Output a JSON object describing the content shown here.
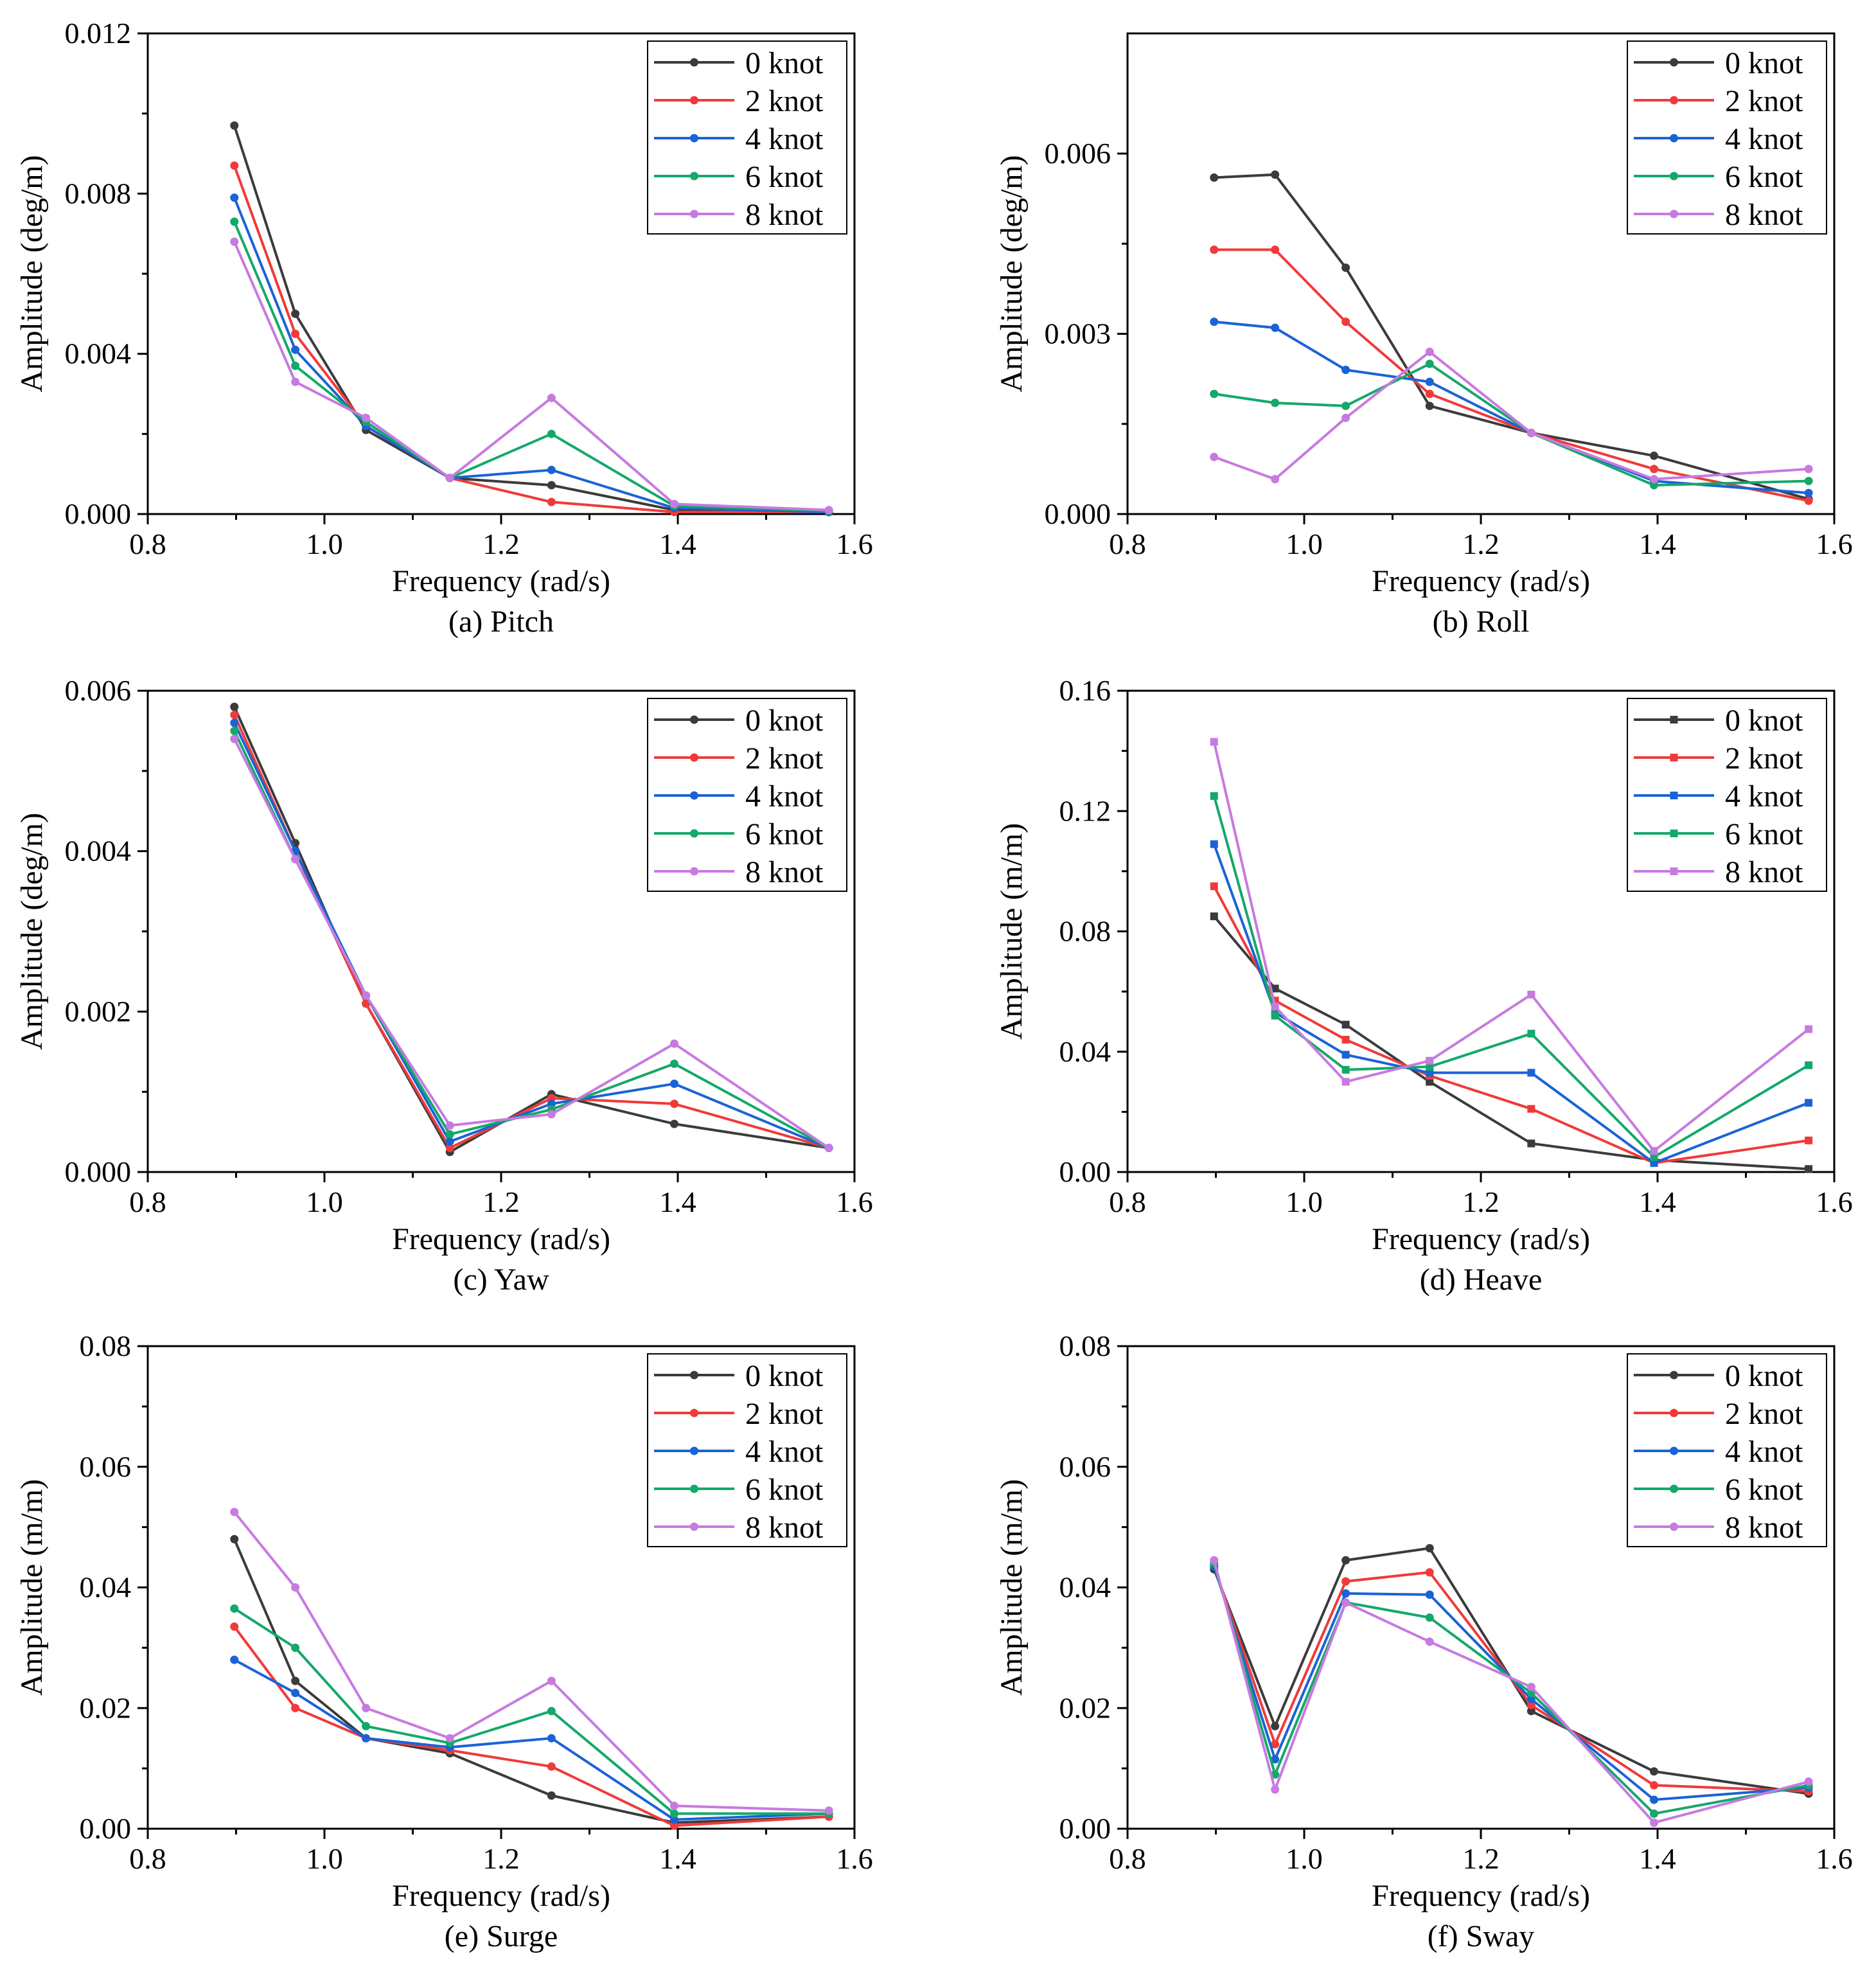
{
  "figure": {
    "colors": {
      "0 knot": "#3b3b3b",
      "2 knot": "#f03a3a",
      "4 knot": "#1a63d6",
      "6 knot": "#14a86a",
      "8 knot": "#c77ae0"
    }
  },
  "chart_data": [
    {
      "id": "pitch",
      "type": "line",
      "caption": "(a) Pitch",
      "xlabel": "Frequency (rad/s)",
      "ylabel": "Amplitude (deg/m)",
      "xlim": [
        0.8,
        1.6
      ],
      "ylim": [
        0,
        0.012
      ],
      "xticks": [
        "0.8",
        "1.0",
        "1.2",
        "1.4",
        "1.6"
      ],
      "yticks": [
        "0.000",
        "0.004",
        "0.008",
        "0.012"
      ],
      "marker": "circle",
      "legend": "top-right",
      "x": [
        0.898,
        0.967,
        1.047,
        1.142,
        1.257,
        1.396,
        1.571
      ],
      "series": [
        {
          "name": "0 knot",
          "values": [
            0.0097,
            0.005,
            0.0021,
            0.0009,
            0.00072,
            0.0001,
            5e-05
          ]
        },
        {
          "name": "2 knot",
          "values": [
            0.0087,
            0.0045,
            0.0022,
            0.0009,
            0.0003,
            5e-05,
            5e-05
          ]
        },
        {
          "name": "4 knot",
          "values": [
            0.0079,
            0.0041,
            0.0022,
            0.0009,
            0.0011,
            0.00015,
            5e-05
          ]
        },
        {
          "name": "6 knot",
          "values": [
            0.0073,
            0.0037,
            0.0023,
            0.0009,
            0.002,
            0.0002,
            8e-05
          ]
        },
        {
          "name": "8 knot",
          "values": [
            0.0068,
            0.0033,
            0.0024,
            0.0009,
            0.0029,
            0.00025,
            0.0001
          ]
        }
      ]
    },
    {
      "id": "roll",
      "type": "line",
      "caption": "(b) Roll",
      "xlabel": "Frequency (rad/s)",
      "ylabel": "Amplitude (deg/m)",
      "xlim": [
        0.8,
        1.6
      ],
      "ylim": [
        0,
        0.008
      ],
      "xticks": [
        "0.8",
        "1.0",
        "1.2",
        "1.4",
        "1.6"
      ],
      "yticks": [
        "0.000",
        "0.003",
        "0.006"
      ],
      "ytick_values": [
        0,
        0.003,
        0.006
      ],
      "marker": "circle",
      "legend": "top-right",
      "x": [
        0.898,
        0.967,
        1.047,
        1.142,
        1.257,
        1.396,
        1.571
      ],
      "series": [
        {
          "name": "0 knot",
          "values": [
            0.0056,
            0.00565,
            0.0041,
            0.0018,
            0.00135,
            0.00097,
            0.00025
          ]
        },
        {
          "name": "2 knot",
          "values": [
            0.0044,
            0.0044,
            0.0032,
            0.002,
            0.00135,
            0.00075,
            0.00022
          ]
        },
        {
          "name": "4 knot",
          "values": [
            0.0032,
            0.0031,
            0.0024,
            0.0022,
            0.00135,
            0.00055,
            0.00035
          ]
        },
        {
          "name": "6 knot",
          "values": [
            0.002,
            0.00185,
            0.0018,
            0.0025,
            0.00135,
            0.00048,
            0.00055
          ]
        },
        {
          "name": "8 knot",
          "values": [
            0.00095,
            0.00058,
            0.0016,
            0.0027,
            0.00135,
            0.00058,
            0.00075
          ]
        }
      ]
    },
    {
      "id": "yaw",
      "type": "line",
      "caption": "(c) Yaw",
      "xlabel": "Frequency (rad/s)",
      "ylabel": "Amplitude (deg/m)",
      "xlim": [
        0.8,
        1.6
      ],
      "ylim": [
        0,
        0.006
      ],
      "xticks": [
        "0.8",
        "1.0",
        "1.2",
        "1.4",
        "1.6"
      ],
      "yticks": [
        "0.000",
        "0.002",
        "0.004",
        "0.006"
      ],
      "marker": "circle",
      "legend": "top-right",
      "x": [
        0.898,
        0.967,
        1.047,
        1.142,
        1.257,
        1.396,
        1.571
      ],
      "series": [
        {
          "name": "0 knot",
          "values": [
            0.0058,
            0.0041,
            0.0021,
            0.00025,
            0.00097,
            0.0006,
            0.0003
          ]
        },
        {
          "name": "2 knot",
          "values": [
            0.0057,
            0.004,
            0.0021,
            0.0003,
            0.00092,
            0.00085,
            0.0003
          ]
        },
        {
          "name": "4 knot",
          "values": [
            0.0056,
            0.004,
            0.0022,
            0.00038,
            0.00085,
            0.0011,
            0.0003
          ]
        },
        {
          "name": "6 knot",
          "values": [
            0.0055,
            0.0039,
            0.0022,
            0.00047,
            0.00078,
            0.00135,
            0.0003
          ]
        },
        {
          "name": "8 knot",
          "values": [
            0.0054,
            0.0039,
            0.0022,
            0.00058,
            0.00072,
            0.0016,
            0.0003
          ]
        }
      ]
    },
    {
      "id": "heave",
      "type": "line",
      "caption": "(d) Heave",
      "xlabel": "Frequency (rad/s)",
      "ylabel": "Amplitude (m/m)",
      "xlim": [
        0.8,
        1.6
      ],
      "ylim": [
        0,
        0.16
      ],
      "xticks": [
        "0.8",
        "1.0",
        "1.2",
        "1.4",
        "1.6"
      ],
      "yticks": [
        "0.00",
        "0.04",
        "0.08",
        "0.12",
        "0.16"
      ],
      "marker": "square",
      "legend": "top-right",
      "x": [
        0.898,
        0.967,
        1.047,
        1.142,
        1.257,
        1.396,
        1.571
      ],
      "series": [
        {
          "name": "0 knot",
          "values": [
            0.085,
            0.061,
            0.049,
            0.03,
            0.0095,
            0.004,
            0.001
          ]
        },
        {
          "name": "2 knot",
          "values": [
            0.095,
            0.057,
            0.044,
            0.032,
            0.021,
            0.003,
            0.0105
          ]
        },
        {
          "name": "4 knot",
          "values": [
            0.109,
            0.053,
            0.039,
            0.033,
            0.033,
            0.003,
            0.023
          ]
        },
        {
          "name": "6 knot",
          "values": [
            0.125,
            0.052,
            0.034,
            0.035,
            0.046,
            0.005,
            0.0355
          ]
        },
        {
          "name": "8 knot",
          "values": [
            0.143,
            0.055,
            0.03,
            0.037,
            0.059,
            0.007,
            0.0475
          ]
        }
      ]
    },
    {
      "id": "surge",
      "type": "line",
      "caption": "(e) Surge",
      "xlabel": "Frequency (rad/s)",
      "ylabel": "Amplitude (m/m)",
      "xlim": [
        0.8,
        1.6
      ],
      "ylim": [
        0,
        0.08
      ],
      "xticks": [
        "0.8",
        "1.0",
        "1.2",
        "1.4",
        "1.6"
      ],
      "yticks": [
        "0.00",
        "0.02",
        "0.04",
        "0.06",
        "0.08"
      ],
      "marker": "circle",
      "legend": "top-right",
      "x": [
        0.898,
        0.967,
        1.047,
        1.142,
        1.257,
        1.396,
        1.571
      ],
      "series": [
        {
          "name": "0 knot",
          "values": [
            0.048,
            0.0245,
            0.015,
            0.0125,
            0.0055,
            0.001,
            0.002
          ]
        },
        {
          "name": "2 knot",
          "values": [
            0.0335,
            0.02,
            0.015,
            0.013,
            0.0103,
            0.0005,
            0.002
          ]
        },
        {
          "name": "4 knot",
          "values": [
            0.028,
            0.0225,
            0.015,
            0.0135,
            0.015,
            0.0015,
            0.0025
          ]
        },
        {
          "name": "6 knot",
          "values": [
            0.0365,
            0.03,
            0.017,
            0.0142,
            0.0195,
            0.0025,
            0.0025
          ]
        },
        {
          "name": "8 knot",
          "values": [
            0.0525,
            0.04,
            0.02,
            0.015,
            0.0245,
            0.0038,
            0.003
          ]
        }
      ]
    },
    {
      "id": "sway",
      "type": "line",
      "caption": "(f) Sway",
      "xlabel": "Frequency (rad/s)",
      "ylabel": "Amplitude (m/m)",
      "xlim": [
        0.8,
        1.6
      ],
      "ylim": [
        0,
        0.08
      ],
      "xticks": [
        "0.8",
        "1.0",
        "1.2",
        "1.4",
        "1.6"
      ],
      "yticks": [
        "0.00",
        "0.02",
        "0.04",
        "0.06",
        "0.08"
      ],
      "marker": "circle",
      "legend": "top-right",
      "x": [
        0.898,
        0.967,
        1.047,
        1.142,
        1.257,
        1.396,
        1.571
      ],
      "series": [
        {
          "name": "0 knot",
          "values": [
            0.043,
            0.017,
            0.0445,
            0.0465,
            0.0195,
            0.0095,
            0.0058
          ]
        },
        {
          "name": "2 knot",
          "values": [
            0.0435,
            0.014,
            0.041,
            0.0425,
            0.0205,
            0.0072,
            0.0062
          ]
        },
        {
          "name": "4 knot",
          "values": [
            0.0435,
            0.0115,
            0.039,
            0.0388,
            0.0215,
            0.0048,
            0.0068
          ]
        },
        {
          "name": "6 knot",
          "values": [
            0.044,
            0.009,
            0.0375,
            0.035,
            0.0225,
            0.0025,
            0.0072
          ]
        },
        {
          "name": "8 knot",
          "values": [
            0.0445,
            0.0065,
            0.0375,
            0.031,
            0.0235,
            0.001,
            0.0078
          ]
        }
      ]
    }
  ]
}
